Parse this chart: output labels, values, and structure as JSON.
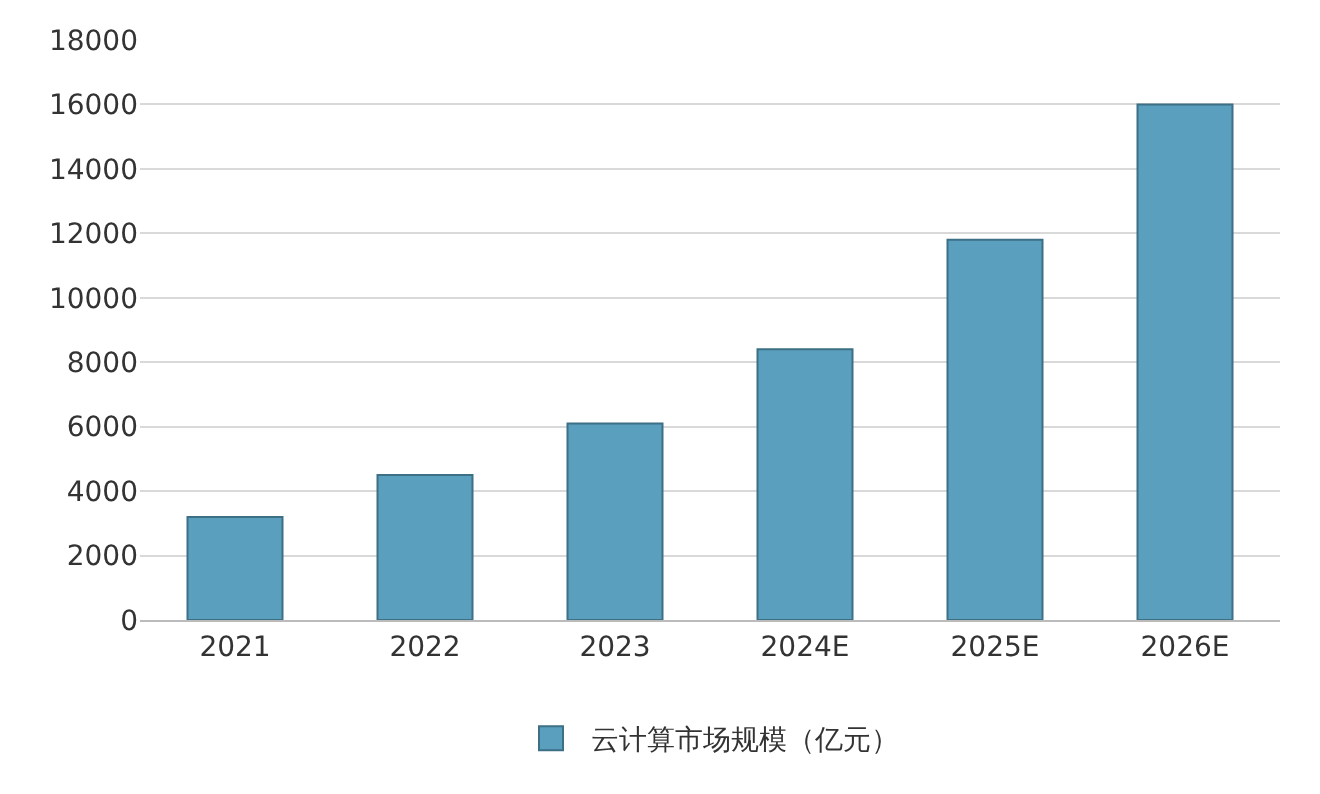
{
  "chart_data": {
    "type": "bar",
    "categories": [
      "2021",
      "2022",
      "2023",
      "2024E",
      "2025E",
      "2026E"
    ],
    "series": [
      {
        "name": "云计算市场规模（亿元）",
        "color": "#5a9fbd",
        "values": [
          3200,
          4500,
          6100,
          8400,
          11800,
          16000
        ]
      }
    ],
    "ylim": [
      0,
      18000
    ],
    "yticks": [
      0,
      2000,
      4000,
      6000,
      8000,
      10000,
      12000,
      14000,
      16000,
      18000
    ],
    "grid": "y",
    "legend": "bottom"
  }
}
